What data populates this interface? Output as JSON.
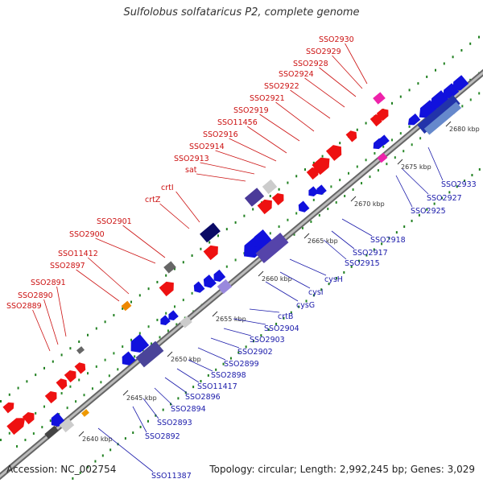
{
  "title": "Sulfolobus solfataricus P2, complete genome",
  "footer": {
    "accession": "Accession: NC_002754",
    "summary": "Topology: circular; Length: 2,992,245 bp; Genes: 3,029"
  },
  "scale_ticks": [
    {
      "label": "2640 kbp"
    },
    {
      "label": "2645 kbp"
    },
    {
      "label": "2650 kbp"
    },
    {
      "label": "2655 kbp"
    },
    {
      "label": "2660 kbp"
    },
    {
      "label": "2665 kbp"
    },
    {
      "label": "2670 kbp"
    },
    {
      "label": "2675 kbp"
    },
    {
      "label": "2680 kbp"
    }
  ],
  "gene_labels_upper": [
    "SSO2889",
    "SSO2890",
    "SSO2891",
    "SSO2897",
    "SSO11412",
    "SSO2900",
    "SSO2901",
    "crtZ",
    "crtI",
    "sat",
    "SSO2913",
    "SSO2914",
    "SSO2916",
    "SSO11456",
    "SSO2919",
    "SSO2921",
    "SSO2922",
    "SSO2924",
    "SSO2928",
    "SSO2929",
    "SSO2930"
  ],
  "gene_labels_lower": [
    "SSO11387",
    "SSO2892",
    "SSO2893",
    "SSO2894",
    "SSO2896",
    "SSO11417",
    "SSO2898",
    "SSO2899",
    "SSO2902",
    "SSO2903",
    "SSO2904",
    "crtB",
    "cysG",
    "cysI",
    "cysH",
    "SSO2915",
    "SSO2917",
    "SSO2918",
    "SSO2925",
    "SSO2927",
    "SSO2933"
  ],
  "colors": {
    "forward": "#ee1111",
    "reverse": "#1111dd",
    "upper_label": "#cc1111",
    "lower_label": "#1a1aaa",
    "axis": "#999999",
    "tick": "#118811"
  }
}
